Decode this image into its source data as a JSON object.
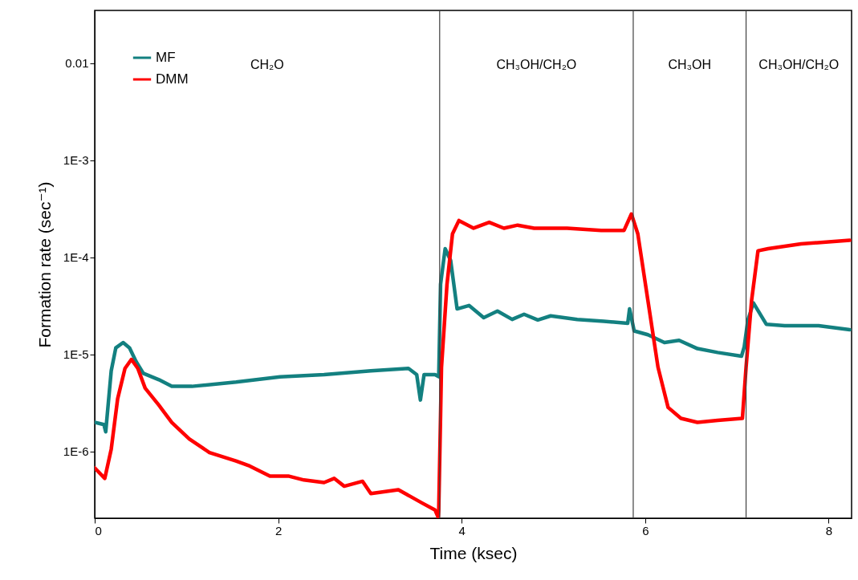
{
  "chart_data": {
    "type": "line",
    "xlabel": "Time (ksec)",
    "ylabel": "Formation rate (sec⁻¹)",
    "log": "y",
    "xlim": [
      0,
      8.25
    ],
    "xticks": [
      0,
      2,
      4,
      6,
      8
    ],
    "ylim": [
      2.06e-07,
      0.035
    ],
    "yticks": [
      {
        "value": 1e-06,
        "label": "1E-6"
      },
      {
        "value": 1e-05,
        "label": "1E-5"
      },
      {
        "value": 0.0001,
        "label": "1E-4"
      },
      {
        "value": 0.001,
        "label": "1E-3"
      },
      {
        "value": 0.01,
        "label": "0.01"
      }
    ],
    "legend": "top left",
    "series": [
      {
        "name": "MF",
        "color": "#138080",
        "x": [
          0,
          0.1,
          0.12,
          0.18,
          0.23,
          0.31,
          0.38,
          0.45,
          0.53,
          0.7,
          0.84,
          1.06,
          1.54,
          2.02,
          2.5,
          3.01,
          3.42,
          3.51,
          3.55,
          3.59,
          3.71,
          3.75,
          3.77,
          3.82,
          3.88,
          3.95,
          4.08,
          4.24,
          4.39,
          4.55,
          4.68,
          4.83,
          4.97,
          5.26,
          5.55,
          5.81,
          5.83,
          5.88,
          6.03,
          6.21,
          6.37,
          6.57,
          6.79,
          7.05,
          7.08,
          7.12,
          7.18,
          7.32,
          7.52,
          7.89,
          8.23
        ],
        "values": [
          2e-06,
          1.9e-06,
          1.6e-06,
          6.8e-06,
          1.17e-05,
          1.33e-05,
          1.17e-05,
          8.5e-06,
          6.4e-06,
          5.5e-06,
          4.7e-06,
          4.7e-06,
          5.2e-06,
          5.9e-06,
          6.2e-06,
          6.8e-06,
          7.2e-06,
          6.2e-06,
          3.4e-06,
          6.2e-06,
          6.2e-06,
          5.9e-06,
          5.3e-05,
          0.000123,
          9.3e-05,
          2.95e-05,
          3.2e-05,
          2.4e-05,
          2.8e-05,
          2.3e-05,
          2.6e-05,
          2.27e-05,
          2.5e-05,
          2.3e-05,
          2.2e-05,
          2.1e-05,
          2.95e-05,
          1.75e-05,
          1.6e-05,
          1.33e-05,
          1.4e-05,
          1.15e-05,
          1.05e-05,
          9.6e-06,
          1.2e-05,
          2.27e-05,
          3.4e-05,
          2.05e-05,
          1.98e-05,
          1.98e-05,
          1.8e-05
        ]
      },
      {
        "name": "DMM",
        "color": "#ff0000",
        "x": [
          0,
          0.11,
          0.18,
          0.25,
          0.33,
          0.4,
          0.47,
          0.55,
          0.7,
          0.84,
          1.03,
          1.25,
          1.54,
          1.69,
          1.91,
          2.11,
          2.28,
          2.5,
          2.61,
          2.72,
          2.92,
          3.01,
          3.31,
          3.57,
          3.71,
          3.745,
          3.75,
          3.78,
          3.84,
          3.9,
          3.97,
          4.13,
          4.3,
          4.46,
          4.61,
          4.79,
          5.15,
          5.52,
          5.77,
          5.85,
          5.92,
          6.03,
          6.14,
          6.25,
          6.39,
          6.57,
          6.79,
          7.06,
          7.1,
          7.16,
          7.23,
          7.34,
          7.7,
          8.23
        ],
        "values": [
          6.8e-07,
          5.3e-07,
          1.06e-06,
          3.5e-06,
          7.2e-06,
          8.9e-06,
          7.2e-06,
          4.5e-06,
          3e-06,
          2e-06,
          1.35e-06,
          9.8e-07,
          8e-07,
          7.1e-07,
          5.6e-07,
          5.6e-07,
          5.1e-07,
          4.8e-07,
          5.3e-07,
          4.4e-07,
          4.95e-07,
          3.7e-07,
          4.05e-07,
          2.95e-07,
          2.5e-07,
          2.1e-07,
          2.5e-07,
          7.4e-06,
          5.3e-05,
          0.000175,
          0.00024,
          0.0002,
          0.00023,
          0.0002,
          0.000215,
          0.0002,
          0.0002,
          0.00019,
          0.00019,
          0.00028,
          0.000175,
          3.6e-05,
          7.4e-06,
          2.85e-06,
          2.2e-06,
          2e-06,
          2.1e-06,
          2.2e-06,
          7.4e-06,
          3.6e-05,
          0.000117,
          0.000123,
          0.000138,
          0.00015
        ]
      }
    ],
    "ref_lines": [
      {
        "axis": "x",
        "value": 3.76,
        "color": "#404040"
      },
      {
        "axis": "x",
        "value": 5.87,
        "color": "#404040"
      },
      {
        "axis": "x",
        "value": 7.1,
        "color": "#404040"
      }
    ],
    "annotations": [
      "CH₂O",
      "CH₃OH/CH₂O",
      "CH₃OH",
      "CH₃OH/CH₂O"
    ]
  }
}
